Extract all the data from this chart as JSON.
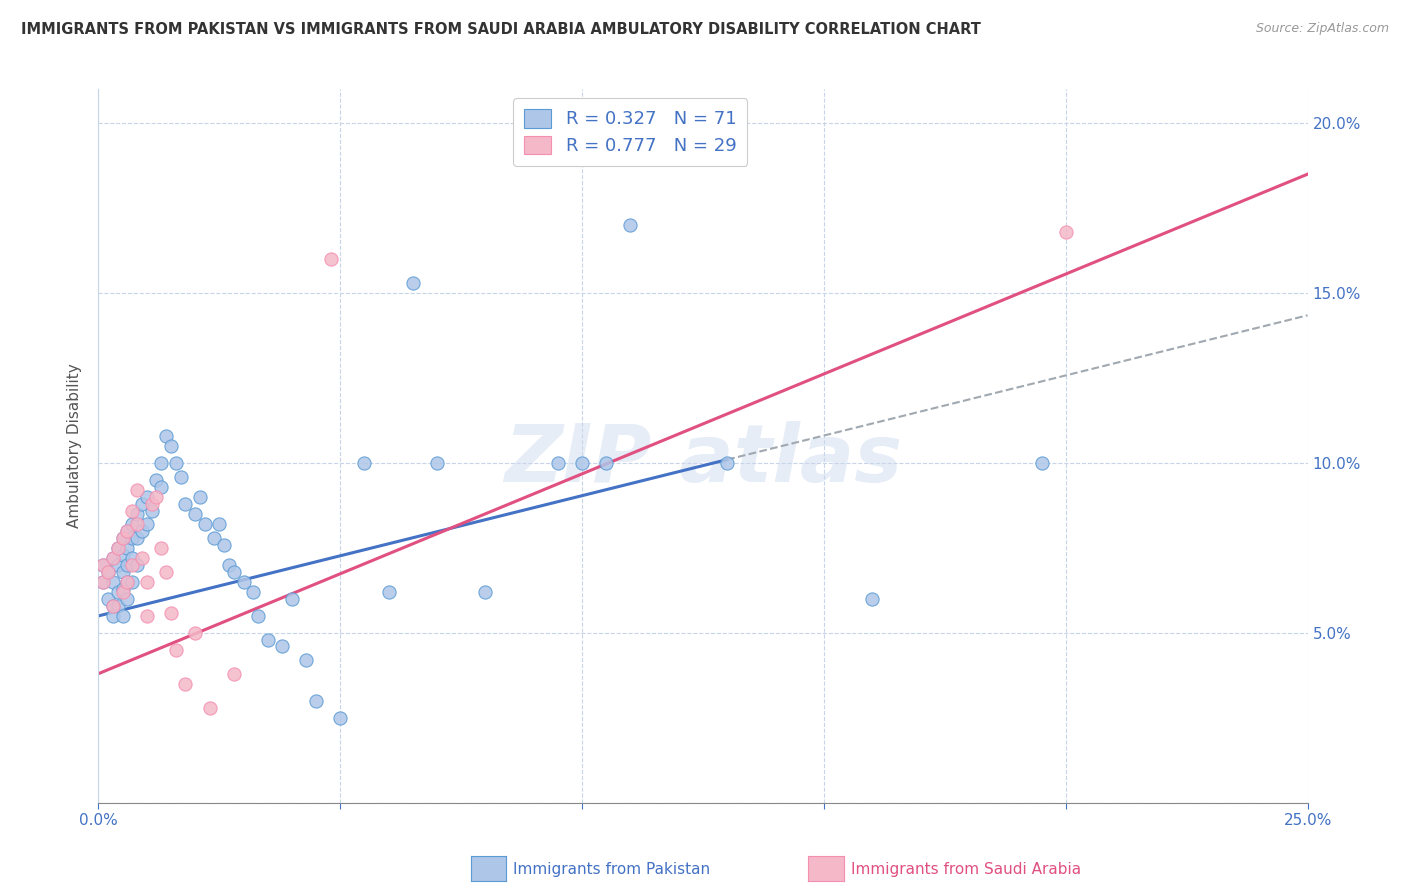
{
  "title": "IMMIGRANTS FROM PAKISTAN VS IMMIGRANTS FROM SAUDI ARABIA AMBULATORY DISABILITY CORRELATION CHART",
  "source": "Source: ZipAtlas.com",
  "ylabel": "Ambulatory Disability",
  "xlim": [
    0,
    0.25
  ],
  "ylim": [
    0,
    0.21
  ],
  "color_pakistan": "#aec6e8",
  "color_saudi": "#f4b8c8",
  "edge_pakistan": "#5b9bd5",
  "edge_saudi": "#f48fb1",
  "line_color_pakistan": "#4472c4",
  "line_color_saudi": "#e05080",
  "line_color_dashed": "#a0a8b0",
  "background_color": "#ffffff",
  "grid_color": "#c8d4e8",
  "pk_line_x0": 0.0,
  "pk_line_y0": 0.055,
  "pk_line_x1": 0.13,
  "pk_line_y1": 0.101,
  "sa_line_x0": 0.0,
  "sa_line_y0": 0.038,
  "sa_line_x1": 0.25,
  "sa_line_y1": 0.185,
  "pakistan_x": [
    0.001,
    0.001,
    0.002,
    0.002,
    0.003,
    0.003,
    0.003,
    0.003,
    0.004,
    0.004,
    0.004,
    0.004,
    0.005,
    0.005,
    0.005,
    0.005,
    0.005,
    0.006,
    0.006,
    0.006,
    0.006,
    0.006,
    0.007,
    0.007,
    0.007,
    0.007,
    0.008,
    0.008,
    0.008,
    0.009,
    0.009,
    0.01,
    0.01,
    0.011,
    0.012,
    0.013,
    0.013,
    0.014,
    0.015,
    0.016,
    0.017,
    0.018,
    0.02,
    0.021,
    0.022,
    0.024,
    0.025,
    0.026,
    0.027,
    0.028,
    0.03,
    0.032,
    0.033,
    0.035,
    0.038,
    0.04,
    0.043,
    0.045,
    0.05,
    0.055,
    0.06,
    0.065,
    0.07,
    0.08,
    0.095,
    0.1,
    0.105,
    0.11,
    0.13,
    0.16,
    0.195
  ],
  "pakistan_y": [
    0.07,
    0.065,
    0.068,
    0.06,
    0.072,
    0.065,
    0.058,
    0.055,
    0.075,
    0.07,
    0.062,
    0.058,
    0.078,
    0.073,
    0.068,
    0.063,
    0.055,
    0.08,
    0.075,
    0.07,
    0.065,
    0.06,
    0.082,
    0.078,
    0.072,
    0.065,
    0.085,
    0.078,
    0.07,
    0.088,
    0.08,
    0.09,
    0.082,
    0.086,
    0.095,
    0.1,
    0.093,
    0.108,
    0.105,
    0.1,
    0.096,
    0.088,
    0.085,
    0.09,
    0.082,
    0.078,
    0.082,
    0.076,
    0.07,
    0.068,
    0.065,
    0.062,
    0.055,
    0.048,
    0.046,
    0.06,
    0.042,
    0.03,
    0.025,
    0.1,
    0.062,
    0.153,
    0.1,
    0.062,
    0.1,
    0.1,
    0.1,
    0.17,
    0.1,
    0.06,
    0.1
  ],
  "saudi_x": [
    0.001,
    0.001,
    0.002,
    0.003,
    0.003,
    0.004,
    0.005,
    0.005,
    0.006,
    0.006,
    0.007,
    0.007,
    0.008,
    0.008,
    0.009,
    0.01,
    0.01,
    0.011,
    0.012,
    0.013,
    0.014,
    0.015,
    0.016,
    0.018,
    0.02,
    0.023,
    0.028,
    0.048,
    0.2
  ],
  "saudi_y": [
    0.07,
    0.065,
    0.068,
    0.072,
    0.058,
    0.075,
    0.078,
    0.062,
    0.08,
    0.065,
    0.086,
    0.07,
    0.092,
    0.082,
    0.072,
    0.065,
    0.055,
    0.088,
    0.09,
    0.075,
    0.068,
    0.056,
    0.045,
    0.035,
    0.05,
    0.028,
    0.038,
    0.16,
    0.168
  ]
}
